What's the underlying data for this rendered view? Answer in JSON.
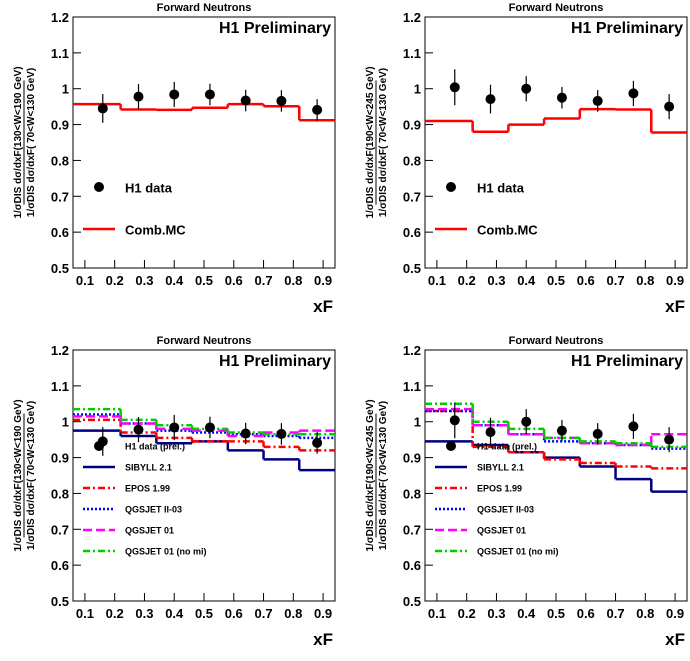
{
  "chart_data": [
    {
      "type": "step-errorbar",
      "title": "Forward Neutrons",
      "annotation": "H1 Preliminary",
      "y_label": [
        "1/σDIS dσ/dxF(130<W<190 GeV)",
        "1/σDIS dσ/dxF( 70<W<130 GeV)"
      ],
      "x_label": "xF",
      "xlim": [
        0.06,
        0.94
      ],
      "xticks": [
        0.1,
        0.2,
        0.3,
        0.4,
        0.5,
        0.6,
        0.7,
        0.8,
        0.9
      ],
      "ylim": [
        0.5,
        1.2
      ],
      "yticks": [
        0.5,
        0.6,
        0.7,
        0.8,
        0.9,
        1,
        1.1,
        1.2
      ],
      "x": [
        0.16,
        0.28,
        0.4,
        0.52,
        0.64,
        0.76,
        0.88
      ],
      "bins": [
        0.06,
        0.22,
        0.34,
        0.46,
        0.58,
        0.7,
        0.82,
        0.94
      ],
      "points": {
        "name": "H1 data",
        "color": "#000000",
        "values": [
          0.945,
          0.978,
          0.984,
          0.984,
          0.967,
          0.966,
          0.941
        ],
        "errors": [
          0.04,
          0.035,
          0.035,
          0.03,
          0.03,
          0.03,
          0.03
        ]
      },
      "series": [
        {
          "name": "Comb.MC",
          "color": "#ff0000",
          "linestyle": "solid",
          "values": [
            0.957,
            0.942,
            0.941,
            0.947,
            0.957,
            0.951,
            0.912
          ]
        }
      ]
    },
    {
      "type": "step-errorbar",
      "title": "Forward Neutrons",
      "annotation": "H1 Preliminary",
      "y_label": [
        "1/σDIS dσ/dxF(190<W<245 GeV)",
        "1/σDIS dσ/dxF( 70<W<130 GeV)"
      ],
      "x_label": "xF",
      "xlim": [
        0.06,
        0.94
      ],
      "xticks": [
        0.1,
        0.2,
        0.3,
        0.4,
        0.5,
        0.6,
        0.7,
        0.8,
        0.9
      ],
      "ylim": [
        0.5,
        1.2
      ],
      "yticks": [
        0.5,
        0.6,
        0.7,
        0.8,
        0.9,
        1,
        1.1,
        1.2
      ],
      "x": [
        0.16,
        0.28,
        0.4,
        0.52,
        0.64,
        0.76,
        0.88
      ],
      "bins": [
        0.06,
        0.22,
        0.34,
        0.46,
        0.58,
        0.7,
        0.82,
        0.94
      ],
      "points": {
        "name": "H1 data",
        "color": "#000000",
        "values": [
          1.004,
          0.971,
          1.0,
          0.975,
          0.966,
          0.987,
          0.95
        ],
        "errors": [
          0.05,
          0.04,
          0.035,
          0.03,
          0.03,
          0.035,
          0.035
        ]
      },
      "series": [
        {
          "name": "Comb.MC",
          "color": "#ff0000",
          "linestyle": "solid",
          "values": [
            0.91,
            0.88,
            0.9,
            0.917,
            0.943,
            0.942,
            0.878
          ]
        }
      ]
    },
    {
      "type": "step-errorbar",
      "title": "Forward Neutrons",
      "annotation": "H1 Preliminary",
      "y_label": [
        "1/σDIS dσ/dxF(130<W<190 GeV)",
        "1/σDIS dσ/dxF( 70<W<130 GeV)"
      ],
      "x_label": "xF",
      "xlim": [
        0.06,
        0.94
      ],
      "xticks": [
        0.1,
        0.2,
        0.3,
        0.4,
        0.5,
        0.6,
        0.7,
        0.8,
        0.9
      ],
      "ylim": [
        0.5,
        1.2
      ],
      "yticks": [
        0.5,
        0.6,
        0.7,
        0.8,
        0.9,
        1,
        1.1,
        1.2
      ],
      "x": [
        0.16,
        0.28,
        0.4,
        0.52,
        0.64,
        0.76,
        0.88
      ],
      "bins": [
        0.06,
        0.22,
        0.34,
        0.46,
        0.58,
        0.7,
        0.82,
        0.94
      ],
      "points": {
        "name": "H1 data (prel.)",
        "color": "#000000",
        "values": [
          0.945,
          0.978,
          0.984,
          0.984,
          0.967,
          0.966,
          0.941
        ],
        "errors": [
          0.04,
          0.035,
          0.035,
          0.03,
          0.03,
          0.03,
          0.03
        ]
      },
      "series": [
        {
          "name": "SIBYLL 2.1",
          "color": "#000080",
          "linestyle": "solid",
          "values": [
            0.975,
            0.96,
            0.94,
            0.945,
            0.92,
            0.895,
            0.865
          ]
        },
        {
          "name": "EPOS 1.99",
          "color": "#ff0000",
          "linestyle": "dashdot",
          "values": [
            1.005,
            0.97,
            0.955,
            0.945,
            0.945,
            0.93,
            0.92
          ]
        },
        {
          "name": "QGSJET II-03",
          "color": "#0000ff",
          "linestyle": "dotted",
          "values": [
            1.02,
            0.995,
            0.975,
            0.97,
            0.965,
            0.96,
            0.955
          ]
        },
        {
          "name": "QGSJET 01",
          "color": "#ff00ff",
          "linestyle": "dashed",
          "values": [
            1.015,
            0.995,
            0.98,
            0.975,
            0.96,
            0.97,
            0.975
          ]
        },
        {
          "name": "QGSJET 01 (no mi)",
          "color": "#00cc00",
          "linestyle": "dashdot",
          "values": [
            1.035,
            1.005,
            0.99,
            0.98,
            0.97,
            0.965,
            0.965
          ]
        }
      ]
    },
    {
      "type": "step-errorbar",
      "title": "Forward Neutrons",
      "annotation": "H1 Preliminary",
      "y_label": [
        "1/σDIS dσ/dxF(190<W<245 GeV)",
        "1/σDIS dσ/dxF( 70<W<130 GeV)"
      ],
      "x_label": "xF",
      "xlim": [
        0.06,
        0.94
      ],
      "xticks": [
        0.1,
        0.2,
        0.3,
        0.4,
        0.5,
        0.6,
        0.7,
        0.8,
        0.9
      ],
      "ylim": [
        0.5,
        1.2
      ],
      "yticks": [
        0.5,
        0.6,
        0.7,
        0.8,
        0.9,
        1,
        1.1,
        1.2
      ],
      "x": [
        0.16,
        0.28,
        0.4,
        0.52,
        0.64,
        0.76,
        0.88
      ],
      "bins": [
        0.06,
        0.22,
        0.34,
        0.46,
        0.58,
        0.7,
        0.82,
        0.94
      ],
      "points": {
        "name": "H1 data (prel.)",
        "color": "#000000",
        "values": [
          1.004,
          0.971,
          1.0,
          0.975,
          0.966,
          0.987,
          0.95
        ],
        "errors": [
          0.05,
          0.04,
          0.035,
          0.03,
          0.03,
          0.035,
          0.035
        ]
      },
      "series": [
        {
          "name": "SIBYLL 2.1",
          "color": "#000080",
          "linestyle": "solid",
          "values": [
            0.945,
            0.935,
            0.915,
            0.9,
            0.875,
            0.84,
            0.805
          ]
        },
        {
          "name": "EPOS 1.99",
          "color": "#ff0000",
          "linestyle": "dashdot",
          "values": [
            1.03,
            0.93,
            0.915,
            0.895,
            0.885,
            0.875,
            0.87
          ]
        },
        {
          "name": "QGSJET II-03",
          "color": "#0000ff",
          "linestyle": "dotted",
          "values": [
            1.03,
            0.99,
            0.965,
            0.945,
            0.94,
            0.935,
            0.925
          ]
        },
        {
          "name": "QGSJET 01",
          "color": "#ff00ff",
          "linestyle": "dashed",
          "values": [
            1.035,
            0.99,
            0.965,
            0.955,
            0.94,
            0.935,
            0.965
          ]
        },
        {
          "name": "QGSJET 01 (no mi)",
          "color": "#00cc00",
          "linestyle": "dashdot",
          "values": [
            1.05,
            1.0,
            0.98,
            0.955,
            0.945,
            0.94,
            0.93
          ]
        }
      ]
    }
  ]
}
